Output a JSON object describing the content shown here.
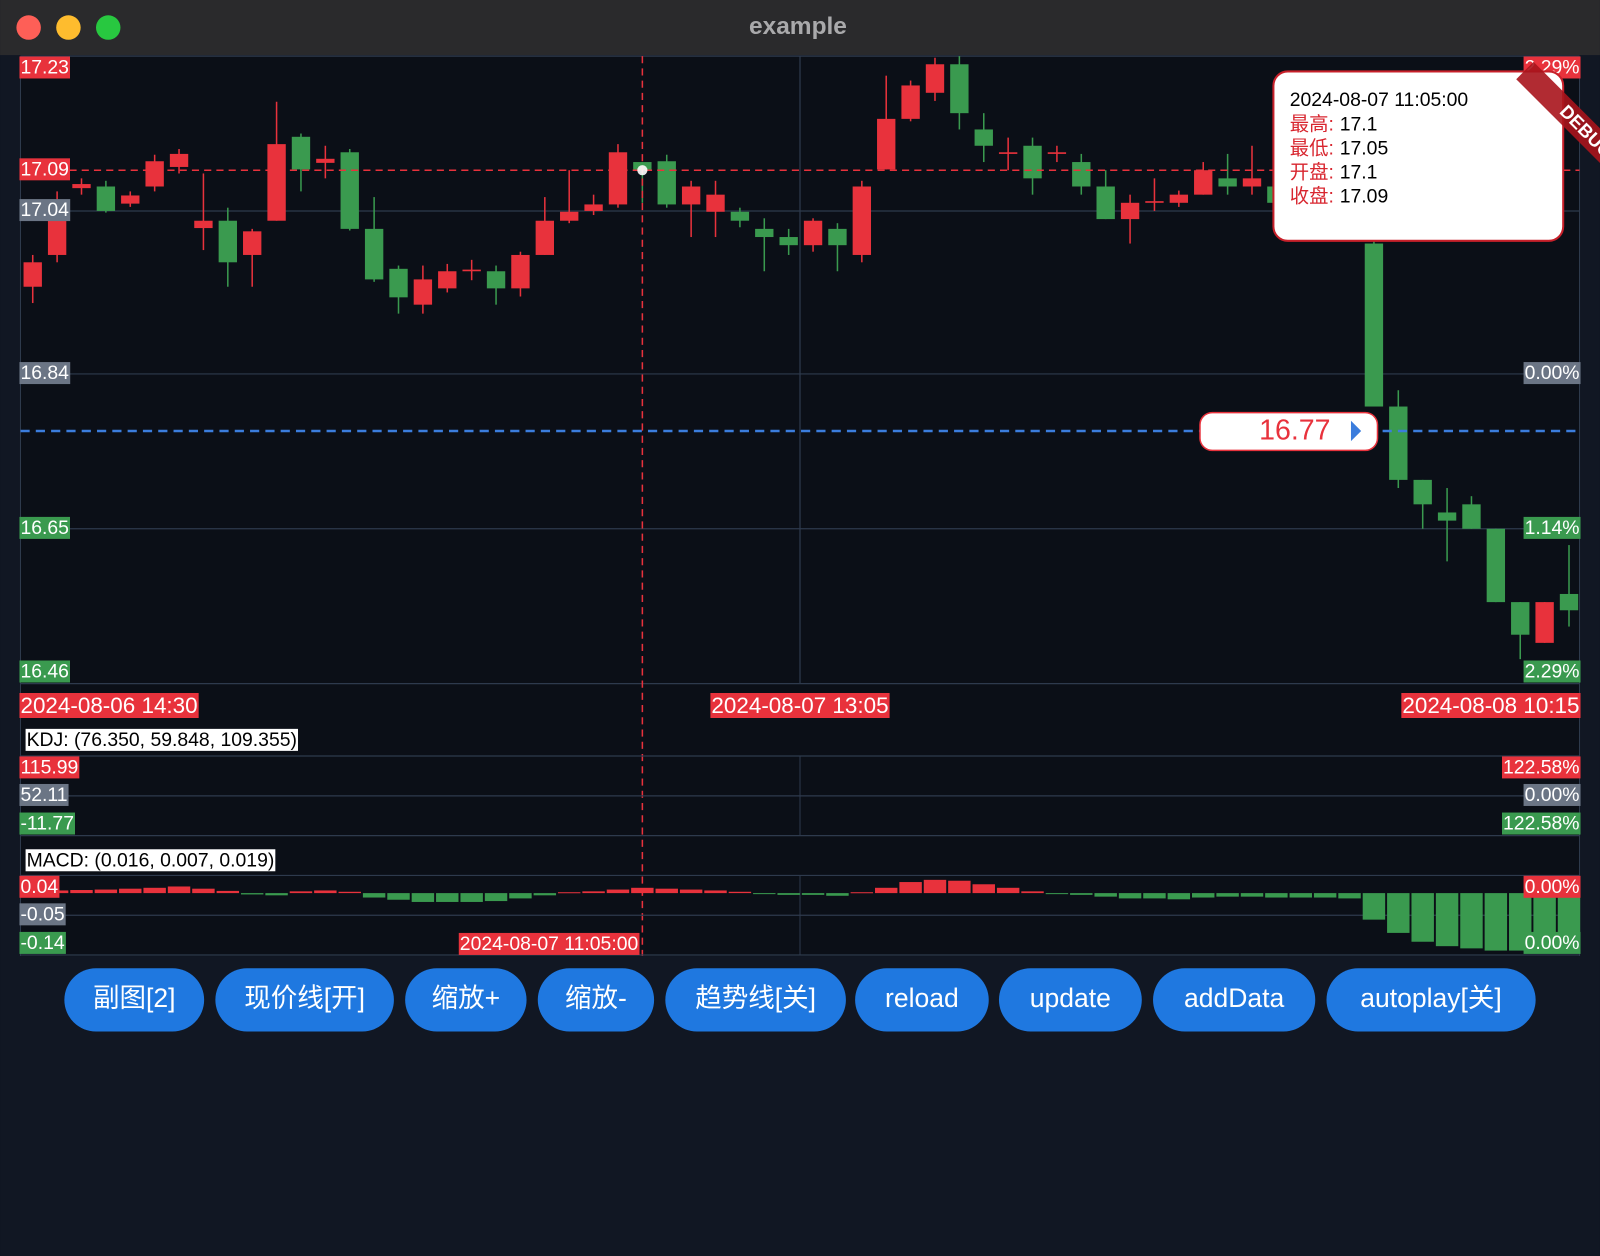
{
  "window": {
    "title": "example"
  },
  "chart_data": {
    "type": "candlestick",
    "open": [
      16.947,
      16.986,
      17.068,
      17.07,
      17.049,
      17.07,
      17.094,
      17.019,
      17.028,
      16.986,
      17.028,
      17.131,
      17.099,
      17.112,
      17.018,
      16.969,
      16.925,
      16.945,
      16.966,
      16.966,
      16.945,
      16.986,
      17.028,
      17.04,
      17.048,
      17.1,
      17.101,
      17.048,
      17.039,
      17.039,
      17.018,
      17.008,
      16.998,
      17.018,
      16.986,
      17.091,
      17.153,
      17.185,
      17.22,
      17.14,
      17.11,
      17.12,
      17.11,
      17.1,
      17.07,
      17.03,
      17.05,
      17.05,
      17.06,
      17.08,
      17.07,
      17.07,
      17.05,
      17.04,
      17.05,
      17.0,
      16.8,
      16.71,
      16.67,
      16.68,
      16.65,
      16.56,
      16.51,
      16.57
    ],
    "high": [
      16.986,
      17.064,
      17.08,
      17.077,
      17.064,
      17.109,
      17.116,
      17.086,
      17.044,
      17.018,
      17.174,
      17.135,
      17.12,
      17.116,
      17.057,
      16.973,
      16.973,
      16.975,
      16.98,
      16.973,
      16.99,
      17.057,
      17.09,
      17.06,
      17.122,
      17.1,
      17.109,
      17.077,
      17.077,
      17.044,
      17.031,
      17.018,
      17.031,
      17.025,
      17.077,
      17.206,
      17.2,
      17.228,
      17.23,
      17.16,
      17.13,
      17.13,
      17.12,
      17.11,
      17.09,
      17.06,
      17.08,
      17.065,
      17.1,
      17.11,
      17.12,
      17.08,
      17.06,
      17.06,
      17.06,
      17.01,
      16.82,
      16.71,
      16.7,
      16.69,
      16.65,
      16.56,
      16.56,
      16.63
    ],
    "low": [
      16.927,
      16.977,
      17.06,
      17.038,
      17.045,
      17.064,
      17.086,
      16.992,
      16.947,
      16.947,
      17.028,
      17.064,
      17.08,
      17.016,
      16.953,
      16.914,
      16.914,
      16.94,
      16.955,
      16.925,
      16.935,
      16.986,
      17.025,
      17.035,
      17.044,
      17.05,
      17.044,
      17.008,
      17.008,
      17.02,
      16.966,
      16.986,
      16.99,
      16.966,
      16.977,
      17.091,
      17.15,
      17.175,
      17.14,
      17.1,
      17.09,
      17.06,
      17.1,
      17.06,
      17.03,
      17.0,
      17.04,
      17.045,
      17.06,
      17.06,
      17.06,
      17.04,
      17.03,
      17.03,
      17.01,
      16.8,
      16.7,
      16.65,
      16.61,
      16.65,
      16.56,
      16.49,
      16.51,
      16.53
    ],
    "close": [
      16.977,
      17.048,
      17.073,
      17.04,
      17.059,
      17.101,
      17.11,
      17.028,
      16.977,
      17.015,
      17.122,
      17.091,
      17.104,
      17.018,
      16.956,
      16.934,
      16.956,
      16.966,
      16.968,
      16.945,
      16.986,
      17.028,
      17.039,
      17.048,
      17.112,
      17.09,
      17.048,
      17.07,
      17.06,
      17.028,
      17.008,
      16.998,
      17.028,
      16.998,
      17.07,
      17.153,
      17.194,
      17.22,
      17.16,
      17.12,
      17.112,
      17.08,
      17.112,
      17.07,
      17.03,
      17.05,
      17.052,
      17.06,
      17.09,
      17.07,
      17.08,
      17.05,
      17.04,
      17.05,
      17.02,
      16.8,
      16.71,
      16.68,
      16.66,
      16.65,
      16.56,
      16.52,
      16.56,
      16.55
    ],
    "up_color": "#e8323c",
    "down_color": "#3a9a4f",
    "ylim": [
      16.46,
      17.23
    ],
    "yticks": [
      17.23,
      17.04,
      16.84,
      16.65,
      16.46
    ],
    "grid": true,
    "percent_labels": [
      "2.29%",
      "0.00%",
      "1.14%",
      "2.29%"
    ],
    "x_labels": [
      "2024-08-06 14:30",
      "2024-08-07 13:05",
      "2024-08-08 10:15"
    ],
    "crosshair": {
      "price": 17.09,
      "time": "2024-08-07 11:05:00"
    },
    "current_price": 16.77
  },
  "tooltip": {
    "time": "2024-08-07 11:05:00",
    "rows": [
      {
        "label": "最高:",
        "value": "17.1"
      },
      {
        "label": "最低:",
        "value": "17.05"
      },
      {
        "label": "开盘:",
        "value": "17.1"
      },
      {
        "label": "收盘:",
        "value": "17.09"
      }
    ]
  },
  "kdj": {
    "label": "KDJ: (76.350, 59.848, 109.355)",
    "ylim": [
      -11.77,
      115.99
    ],
    "yticks": [
      115.99,
      52.11,
      -11.77
    ],
    "percent_labels": [
      "122.58%",
      "0.00%",
      "122.58%"
    ]
  },
  "macd": {
    "label": "MACD: (0.016, 0.007, 0.019)",
    "ylim": [
      -0.14,
      0.04
    ],
    "yticks": [
      0.04,
      -0.05,
      -0.14
    ],
    "percent_labels": [
      "0.00%",
      "0.00%"
    ],
    "histogram": [
      0.005,
      0.006,
      0.007,
      0.008,
      0.01,
      0.012,
      0.015,
      0.01,
      0.005,
      -0.003,
      -0.005,
      0.004,
      0.006,
      0.003,
      -0.01,
      -0.015,
      -0.02,
      -0.02,
      -0.02,
      -0.018,
      -0.012,
      -0.005,
      0.002,
      0.004,
      0.008,
      0.012,
      0.01,
      0.008,
      0.006,
      0.003,
      -0.002,
      -0.004,
      -0.004,
      -0.006,
      0.002,
      0.012,
      0.025,
      0.03,
      0.028,
      0.02,
      0.012,
      0.004,
      -0.001,
      -0.004,
      -0.008,
      -0.012,
      -0.012,
      -0.014,
      -0.01,
      -0.008,
      -0.008,
      -0.01,
      -0.01,
      -0.01,
      -0.012,
      -0.06,
      -0.09,
      -0.11,
      -0.12,
      -0.125,
      -0.13,
      -0.13,
      -0.13,
      -0.12
    ]
  },
  "buttons": [
    "副图[2]",
    "现价线[开]",
    "缩放+",
    "缩放-",
    "趋势线[关]",
    "reload",
    "update",
    "addData",
    "autoplay[关]"
  ],
  "debug_banner": "DEBUG"
}
